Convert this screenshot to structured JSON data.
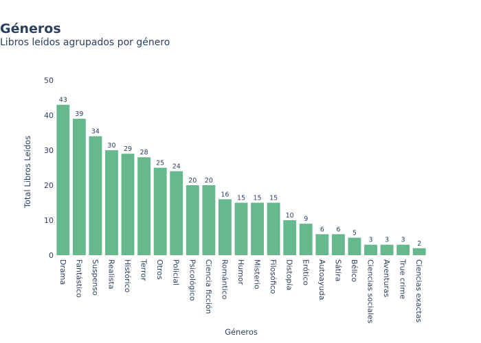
{
  "chart_data": {
    "type": "bar",
    "title": "Géneros",
    "subtitle": "Libros leídos agrupados por género",
    "xlabel": "Géneros",
    "ylabel": "Total Libros Leídos",
    "ylim": [
      0,
      50
    ],
    "yticks": [
      0,
      10,
      20,
      30,
      40,
      50
    ],
    "grid": false,
    "bar_color": "#66b88d",
    "categories": [
      "Drama",
      "Fantástico",
      "Suspenso",
      "Realista",
      "Histórico",
      "Terror",
      "Otros",
      "Policial",
      "Psicológico",
      "Ciencia ficción",
      "Romántico",
      "Humor",
      "Misterio",
      "Filosófico",
      "Distopía",
      "Erótico",
      "Autoayuda",
      "Sátira",
      "Bélico",
      "Ciencias sociales",
      "Aventuras",
      "True crime",
      "Ciencias exactas"
    ],
    "values": [
      43,
      39,
      34,
      30,
      29,
      28,
      25,
      24,
      20,
      20,
      16,
      15,
      15,
      15,
      10,
      9,
      6,
      6,
      5,
      3,
      3,
      3,
      2
    ]
  }
}
